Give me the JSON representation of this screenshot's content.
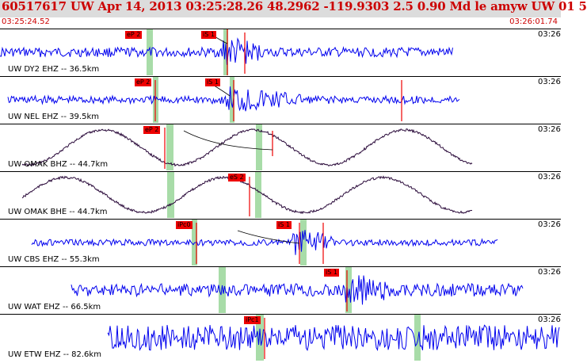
{
  "header": {
    "event_title": "60517617 UW Apr 14, 2013 03:25:28.26    48.2962 -119.9303  2.5 0.90 Md le amyw UW 01    5",
    "time_start": "03:25:24.52",
    "time_end": "03:26:01.74"
  },
  "colors": {
    "header_bg": "#dcdcdc",
    "title": "#cc0000",
    "trace_blue": "#0000ee",
    "trace_dark": "#2a0a3a",
    "pick_red": "#ee0000",
    "window_green": "#a8dca8"
  },
  "traces": [
    {
      "label": "UW DY2 EHZ -- 36.5km",
      "time_tick": "03:26",
      "type": "noise",
      "picks": [
        {
          "text": "eP 2"
        },
        {
          "text": "iS 1"
        }
      ]
    },
    {
      "label": "UW NEL EHZ -- 39.5km",
      "time_tick": "03:26",
      "type": "noise",
      "picks": [
        {
          "text": "eP 2"
        },
        {
          "text": "iS 1"
        }
      ]
    },
    {
      "label": "UW OMAK BHZ -- 44.7km",
      "time_tick": "03:26",
      "type": "wave",
      "picks": [
        {
          "text": "eP 2"
        }
      ]
    },
    {
      "label": "UW OMAK BHE -- 44.7km",
      "time_tick": "03:26",
      "type": "wave",
      "picks": [
        {
          "text": "eS 2"
        }
      ]
    },
    {
      "label": "UW CBS EHZ -- 55.3km",
      "time_tick": "03:26",
      "type": "noise",
      "picks": [
        {
          "text": "iPc0"
        },
        {
          "text": "iS 1"
        }
      ]
    },
    {
      "label": "UW WAT EHZ -- 66.5km",
      "time_tick": "03:26",
      "type": "noise",
      "picks": [
        {
          "text": "iS 1"
        }
      ]
    },
    {
      "label": "UW ETW EHZ -- 82.6km",
      "time_tick": "03:26",
      "type": "noise",
      "picks": [
        {
          "text": "iPc1"
        }
      ]
    }
  ]
}
